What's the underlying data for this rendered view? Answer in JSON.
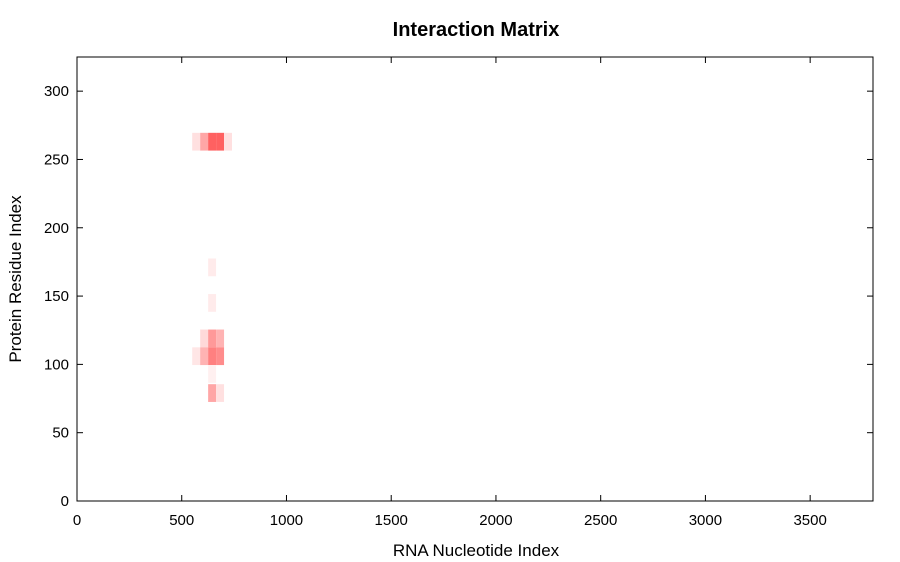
{
  "chart_data": {
    "type": "heatmap",
    "title": "Interaction Matrix",
    "xlabel": "RNA Nucleotide Index",
    "ylabel": "Protein Residue Index",
    "xlim": [
      0,
      3800
    ],
    "ylim": [
      0,
      325
    ],
    "x_ticks": [
      0,
      500,
      1000,
      1500,
      2000,
      2500,
      3000,
      3500
    ],
    "y_ticks": [
      0,
      50,
      100,
      150,
      200,
      250,
      300
    ],
    "grid": false,
    "legend": "none",
    "cell_size": {
      "x": 38,
      "y": 13
    },
    "colormap": {
      "low": "#ffffff",
      "high": "#ff0000"
    },
    "cells": [
      {
        "x": 569,
        "y": 263,
        "value": 0.12
      },
      {
        "x": 607,
        "y": 263,
        "value": 0.35
      },
      {
        "x": 645,
        "y": 263,
        "value": 0.62
      },
      {
        "x": 683,
        "y": 263,
        "value": 0.62
      },
      {
        "x": 721,
        "y": 263,
        "value": 0.12
      },
      {
        "x": 645,
        "y": 171,
        "value": 0.08
      },
      {
        "x": 645,
        "y": 145,
        "value": 0.08
      },
      {
        "x": 607,
        "y": 119,
        "value": 0.15
      },
      {
        "x": 645,
        "y": 119,
        "value": 0.4
      },
      {
        "x": 683,
        "y": 119,
        "value": 0.3
      },
      {
        "x": 569,
        "y": 106,
        "value": 0.1
      },
      {
        "x": 607,
        "y": 106,
        "value": 0.3
      },
      {
        "x": 645,
        "y": 106,
        "value": 0.5
      },
      {
        "x": 683,
        "y": 106,
        "value": 0.45
      },
      {
        "x": 645,
        "y": 93,
        "value": 0.06
      },
      {
        "x": 645,
        "y": 79,
        "value": 0.35
      },
      {
        "x": 683,
        "y": 79,
        "value": 0.12
      }
    ]
  }
}
